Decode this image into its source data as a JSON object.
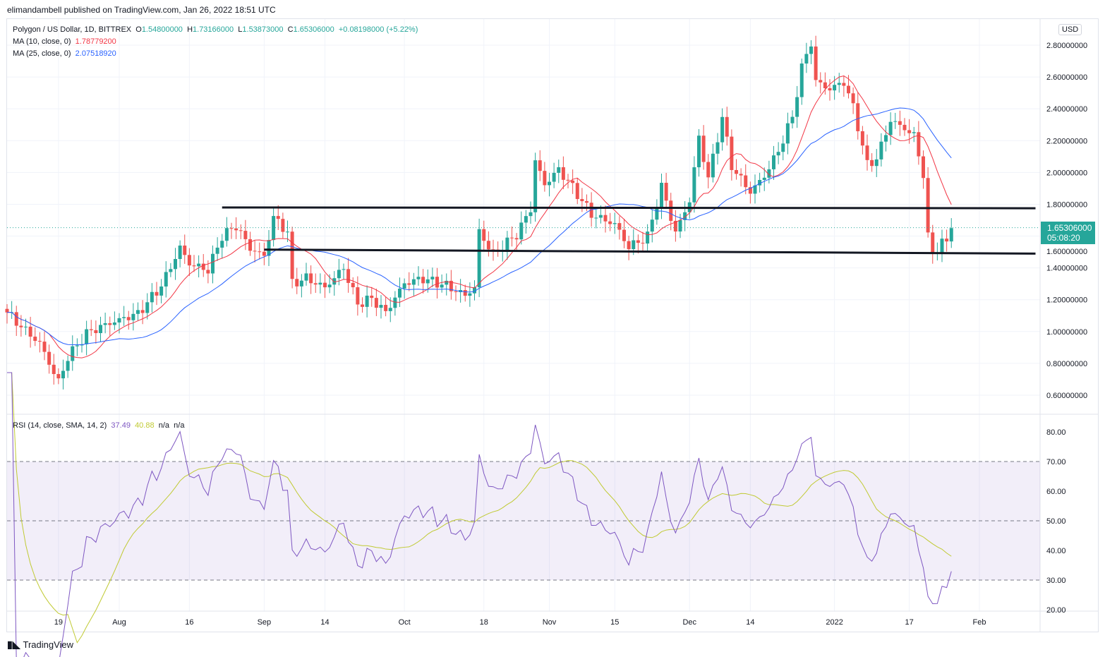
{
  "publisher_line": "elimandambell published on TradingView.com, Jan 26, 2022 18:51 UTC",
  "legend": {
    "symbol": "Polygon / US Dollar, 1D, BITTREX",
    "o_label": "O",
    "o": "1.54800000",
    "h_label": "H",
    "h": "1.73166000",
    "l_label": "L",
    "l": "1.53873000",
    "c_label": "C",
    "c": "1.65306000",
    "change": "+0.08198000 (+5.22%)",
    "ma10_label": "MA (10, close, 0)",
    "ma10": "1.78779200",
    "ma25_label": "MA (25, close, 0)",
    "ma25": "2.07518920",
    "rsi_label": "RSI (14, close, SMA, 14, 2)",
    "rsi": "37.49",
    "rsi_sma": "40.88",
    "na1": "n/a",
    "na2": "n/a"
  },
  "currency": "USD",
  "price_tag": {
    "price": "1.65306000",
    "countdown": "05:08:20"
  },
  "branding": "TradingView",
  "colors": {
    "up": "#26a69a",
    "down": "#ef5350",
    "ma10": "#f23645",
    "ma25": "#2962ff",
    "rsi": "#7e57c2",
    "rsi_sma": "#c0ca33"
  },
  "chart_data": {
    "type": "candlestick",
    "title": "Polygon / US Dollar, 1D, BITTREX",
    "start_date": "2021-07-08",
    "end_date": "2022-01-26",
    "close_keypoints": [
      [
        0,
        1.12
      ],
      [
        7,
        0.95
      ],
      [
        11,
        0.7
      ],
      [
        13,
        0.85
      ],
      [
        17,
        0.98
      ],
      [
        24,
        1.05
      ],
      [
        28,
        1.1
      ],
      [
        33,
        1.3
      ],
      [
        37,
        1.55
      ],
      [
        39,
        1.45
      ],
      [
        43,
        1.4
      ],
      [
        46,
        1.6
      ],
      [
        49,
        1.65
      ],
      [
        52,
        1.5
      ],
      [
        55,
        1.45
      ],
      [
        57,
        1.7
      ],
      [
        60,
        1.62
      ],
      [
        61,
        1.3
      ],
      [
        64,
        1.35
      ],
      [
        68,
        1.3
      ],
      [
        72,
        1.42
      ],
      [
        75,
        1.18
      ],
      [
        78,
        1.2
      ],
      [
        81,
        1.1
      ],
      [
        85,
        1.28
      ],
      [
        89,
        1.32
      ],
      [
        94,
        1.3
      ],
      [
        98,
        1.25
      ],
      [
        100,
        1.3
      ],
      [
        101,
        1.65
      ],
      [
        104,
        1.5
      ],
      [
        109,
        1.6
      ],
      [
        112,
        1.75
      ],
      [
        113,
        2.05
      ],
      [
        115,
        1.9
      ],
      [
        118,
        2.0
      ],
      [
        121,
        1.9
      ],
      [
        125,
        1.75
      ],
      [
        130,
        1.7
      ],
      [
        133,
        1.55
      ],
      [
        137,
        1.6
      ],
      [
        140,
        1.9
      ],
      [
        143,
        1.6
      ],
      [
        146,
        1.8
      ],
      [
        148,
        2.2
      ],
      [
        150,
        1.95
      ],
      [
        153,
        2.35
      ],
      [
        155,
        2.05
      ],
      [
        159,
        1.9
      ],
      [
        162,
        2.0
      ],
      [
        165,
        2.15
      ],
      [
        168,
        2.35
      ],
      [
        170,
        2.65
      ],
      [
        172,
        2.8
      ],
      [
        173,
        2.55
      ],
      [
        176,
        2.5
      ],
      [
        179,
        2.55
      ],
      [
        181,
        2.4
      ],
      [
        184,
        2.05
      ],
      [
        186,
        2.1
      ],
      [
        189,
        2.35
      ],
      [
        192,
        2.3
      ],
      [
        194,
        2.25
      ],
      [
        196,
        2.0
      ],
      [
        197,
        1.6
      ],
      [
        198,
        1.5
      ],
      [
        200,
        1.55
      ],
      [
        201,
        1.55
      ],
      [
        202,
        1.65
      ]
    ],
    "y_axis": {
      "min": 0.6,
      "max": 2.8,
      "ticks": [
        "2.80000000",
        "2.60000000",
        "2.40000000",
        "2.20000000",
        "2.00000000",
        "1.80000000",
        "1.60000000",
        "1.40000000",
        "1.20000000",
        "1.00000000",
        "0.80000000",
        "0.60000000"
      ]
    },
    "rsi_axis": {
      "ticks": [
        "80.00",
        "70.00",
        "60.00",
        "50.00",
        "40.00",
        "30.00",
        "20.00"
      ],
      "overbought": 70,
      "oversold": 30,
      "mid": 50
    },
    "x_ticks": [
      {
        "label": "19",
        "day": 11
      },
      {
        "label": "Aug",
        "day": 24
      },
      {
        "label": "16",
        "day": 39
      },
      {
        "label": "Sep",
        "day": 55
      },
      {
        "label": "14",
        "day": 68
      },
      {
        "label": "Oct",
        "day": 85
      },
      {
        "label": "18",
        "day": 102
      },
      {
        "label": "Nov",
        "day": 116
      },
      {
        "label": "15",
        "day": 130
      },
      {
        "label": "Dec",
        "day": 146
      },
      {
        "label": "14",
        "day": 159
      },
      {
        "label": "2022",
        "day": 177
      },
      {
        "label": "17",
        "day": 193
      },
      {
        "label": "Feb",
        "day": 208
      }
    ],
    "trendlines": [
      {
        "from": [
          46,
          1.78
        ],
        "to": [
          220,
          1.775
        ]
      },
      {
        "from": [
          55,
          1.515
        ],
        "to": [
          220,
          1.49
        ]
      }
    ],
    "last_price": 1.65306
  }
}
